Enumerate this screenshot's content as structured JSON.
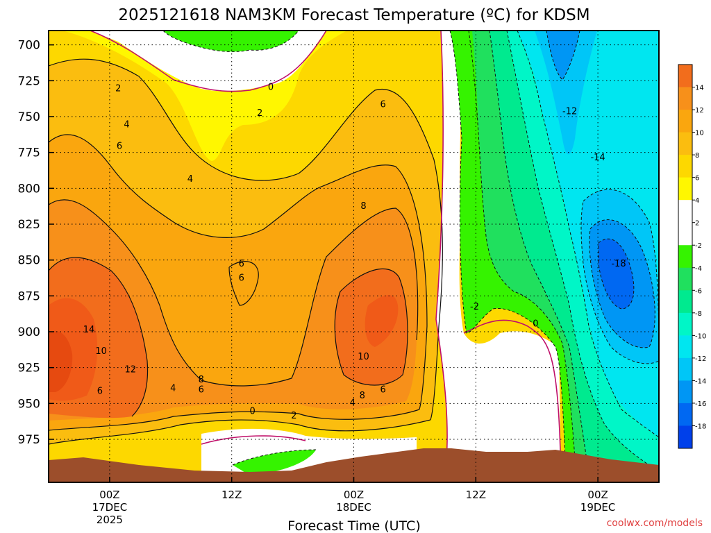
{
  "chart_data": {
    "type": "heatmap",
    "title": "2025121618 NAM3KM Forecast Temperature (ºC) for KDSM",
    "xlabel": "Forecast Time (UTC)",
    "ylabel": "",
    "y_axis": {
      "ticks": [
        700,
        725,
        750,
        775,
        800,
        825,
        850,
        875,
        900,
        925,
        950,
        975
      ],
      "ylim": [
        1005,
        690
      ],
      "unit": "hPa"
    },
    "x_axis": {
      "range_hours": [
        -5,
        45
      ],
      "ticks": [
        {
          "hour": 0,
          "lines": [
            "00Z",
            "17DEC",
            "2025"
          ]
        },
        {
          "hour": 10,
          "lines": [
            "12Z"
          ]
        },
        {
          "hour": 20,
          "lines": [
            "00Z",
            "18DEC"
          ]
        },
        {
          "hour": 30,
          "lines": [
            "12Z"
          ]
        },
        {
          "hour": 40,
          "lines": [
            "00Z",
            "19DEC"
          ]
        }
      ]
    },
    "grid": true,
    "colorbar": {
      "placement": "right",
      "ticks": [
        "14",
        "12",
        "10",
        "8",
        "6",
        "4",
        "2",
        "-2",
        "-4",
        "-6",
        "-8",
        "-10",
        "-12",
        "-14",
        "-16",
        "-18"
      ],
      "colors": [
        "#f26d1c",
        "#f7901a",
        "#faa60e",
        "#fbbd0f",
        "#fdd800",
        "#fff700",
        "#ffffff",
        "#ffffff",
        "#35f300",
        "#20e05e",
        "#00ea8f",
        "#00f6c7",
        "#00e6f0",
        "#00c6f7",
        "#0096f4",
        "#0068f2",
        "#0040ea"
      ]
    },
    "contour_labels": [
      {
        "text": "0",
        "hour": 13.2,
        "p": 729
      },
      {
        "text": "2",
        "hour": 0.7,
        "p": 730
      },
      {
        "text": "2",
        "hour": 12.3,
        "p": 747
      },
      {
        "text": "4",
        "hour": 1.4,
        "p": 755
      },
      {
        "text": "6",
        "hour": 0.8,
        "p": 770
      },
      {
        "text": "4",
        "hour": 6.6,
        "p": 793
      },
      {
        "text": "6",
        "hour": 22.4,
        "p": 741
      },
      {
        "text": "8",
        "hour": 20.8,
        "p": 812
      },
      {
        "text": "6",
        "hour": 10.8,
        "p": 852
      },
      {
        "text": "6",
        "hour": 10.8,
        "p": 862
      },
      {
        "text": "14",
        "hour": -1.7,
        "p": 898
      },
      {
        "text": "10",
        "hour": -0.7,
        "p": 913
      },
      {
        "text": "12",
        "hour": 1.7,
        "p": 926
      },
      {
        "text": "6",
        "hour": -0.8,
        "p": 941
      },
      {
        "text": "4",
        "hour": 5.2,
        "p": 939
      },
      {
        "text": "8",
        "hour": 7.5,
        "p": 933
      },
      {
        "text": "6",
        "hour": 7.5,
        "p": 940
      },
      {
        "text": "0",
        "hour": 11.7,
        "p": 955
      },
      {
        "text": "2",
        "hour": 15.1,
        "p": 958
      },
      {
        "text": "10",
        "hour": 20.8,
        "p": 917
      },
      {
        "text": "8",
        "hour": 20.7,
        "p": 944
      },
      {
        "text": "6",
        "hour": 22.4,
        "p": 940
      },
      {
        "text": "4",
        "hour": 19.9,
        "p": 949
      },
      {
        "text": "-2",
        "hour": 29.9,
        "p": 882
      },
      {
        "text": "0",
        "hour": 34.9,
        "p": 894
      },
      {
        "text": "-12",
        "hour": 37.7,
        "p": 746
      },
      {
        "text": "-14",
        "hour": 40.0,
        "p": 778
      },
      {
        "text": "-18",
        "hour": 41.7,
        "p": 852
      }
    ]
  },
  "credit": "coolwx.com/models"
}
